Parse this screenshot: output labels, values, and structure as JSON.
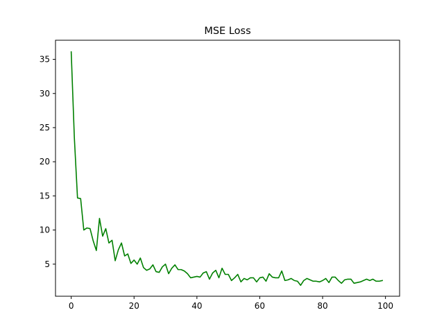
{
  "chart_data": {
    "type": "line",
    "title": "MSE Loss",
    "xlabel": "",
    "ylabel": "",
    "xlim": [
      -5,
      104.5
    ],
    "ylim": [
      0.3,
      37.8
    ],
    "xticks": [
      0,
      20,
      40,
      60,
      80,
      100
    ],
    "yticks": [
      5,
      10,
      15,
      20,
      25,
      30,
      35
    ],
    "grid": false,
    "legend": "none",
    "series": [
      {
        "color": "#008000",
        "x": [
          0,
          1,
          2,
          3,
          4,
          5,
          6,
          7,
          8,
          9,
          10,
          11,
          12,
          13,
          14,
          15,
          16,
          17,
          18,
          19,
          20,
          21,
          22,
          23,
          24,
          25,
          26,
          27,
          28,
          29,
          30,
          31,
          32,
          33,
          34,
          35,
          36,
          37,
          38,
          39,
          40,
          41,
          42,
          43,
          44,
          45,
          46,
          47,
          48,
          49,
          50,
          51,
          52,
          53,
          54,
          55,
          56,
          57,
          58,
          59,
          60,
          61,
          62,
          63,
          64,
          65,
          66,
          67,
          68,
          69,
          70,
          71,
          72,
          73,
          74,
          75,
          76,
          77,
          78,
          79,
          80,
          81,
          82,
          83,
          84,
          85,
          86,
          87,
          88,
          89,
          90,
          91,
          92,
          93,
          94,
          95,
          96,
          97,
          98,
          99
        ],
        "values": [
          36.1,
          23.5,
          14.7,
          14.6,
          10.0,
          10.3,
          10.2,
          8.4,
          7.0,
          11.7,
          9.1,
          10.2,
          8.1,
          8.5,
          5.5,
          7.1,
          8.1,
          6.2,
          6.5,
          5.1,
          5.6,
          5.0,
          5.9,
          4.5,
          4.1,
          4.3,
          4.9,
          3.9,
          3.8,
          4.6,
          5.0,
          3.6,
          4.4,
          4.9,
          4.2,
          4.2,
          4.0,
          3.6,
          3.0,
          3.1,
          3.2,
          3.1,
          3.7,
          3.9,
          2.8,
          3.7,
          4.1,
          3.0,
          4.4,
          3.5,
          3.5,
          2.6,
          3.0,
          3.5,
          2.4,
          2.9,
          2.7,
          3.0,
          3.0,
          2.4,
          3.0,
          3.1,
          2.5,
          3.6,
          3.1,
          3.0,
          3.0,
          4.0,
          2.6,
          2.7,
          2.9,
          2.6,
          2.5,
          1.9,
          2.6,
          2.9,
          2.7,
          2.5,
          2.5,
          2.4,
          2.6,
          2.9,
          2.3,
          3.1,
          3.1,
          2.6,
          2.2,
          2.7,
          2.8,
          2.8,
          2.2,
          2.3,
          2.4,
          2.6,
          2.8,
          2.6,
          2.8,
          2.5,
          2.5,
          2.6
        ]
      }
    ]
  }
}
